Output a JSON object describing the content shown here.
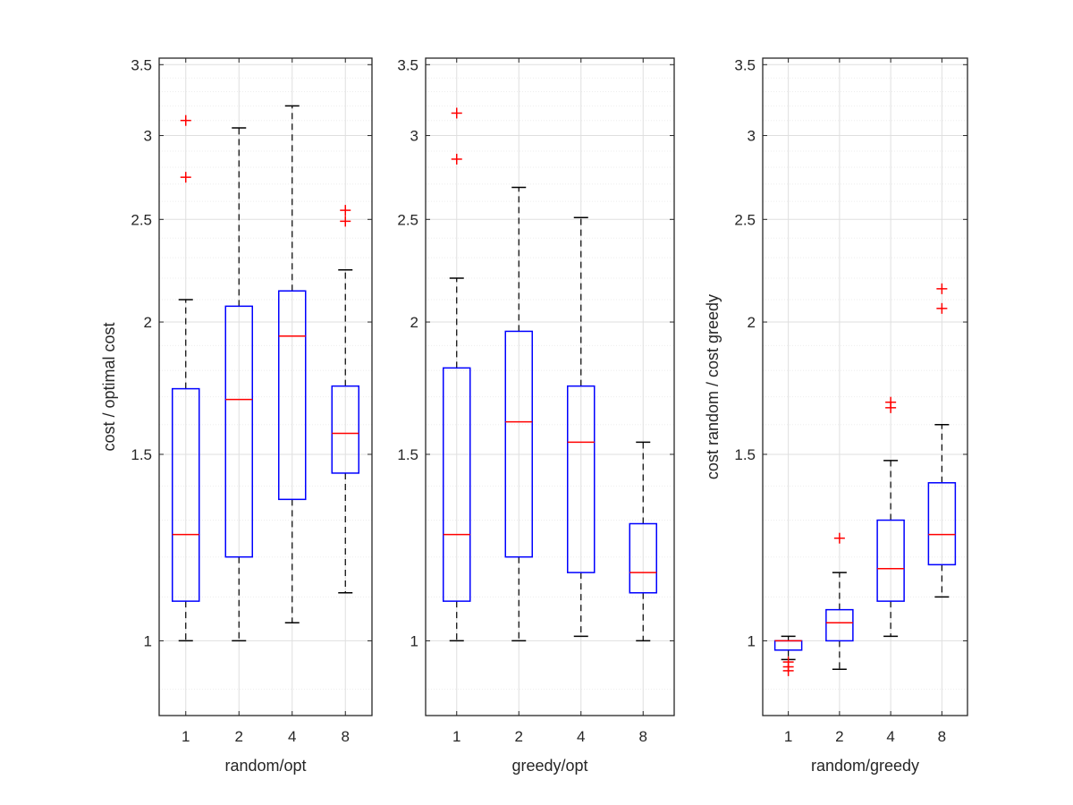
{
  "chart_data": [
    {
      "type": "boxplot",
      "xlabel": "random/opt",
      "ylabel": "cost / optimal cost",
      "ylim": [
        0.85,
        3.55
      ],
      "yscale": "log",
      "yticks": [
        "1",
        "1.5",
        "2",
        "2.5",
        "3",
        "3.5"
      ],
      "grid": true,
      "categories": [
        "1",
        "2",
        "4",
        "8"
      ],
      "boxes": [
        {
          "q1": 1.09,
          "median": 1.26,
          "q3": 1.73,
          "whisker_low": 1.0,
          "whisker_high": 2.1,
          "outliers": [
            3.1,
            2.74
          ]
        },
        {
          "q1": 1.2,
          "median": 1.69,
          "q3": 2.07,
          "whisker_low": 1.0,
          "whisker_high": 3.05,
          "outliers": []
        },
        {
          "q1": 1.36,
          "median": 1.94,
          "q3": 2.14,
          "whisker_low": 1.04,
          "whisker_high": 3.2,
          "outliers": []
        },
        {
          "q1": 1.44,
          "median": 1.57,
          "q3": 1.74,
          "whisker_low": 1.11,
          "whisker_high": 2.24,
          "outliers": [
            2.55,
            2.49
          ]
        }
      ]
    },
    {
      "type": "boxplot",
      "xlabel": "greedy/opt",
      "ylabel": "",
      "ylim": [
        0.85,
        3.55
      ],
      "yscale": "log",
      "yticks": [
        "1",
        "1.5",
        "2",
        "2.5",
        "3",
        "3.5"
      ],
      "grid": true,
      "categories": [
        "1",
        "2",
        "4",
        "8"
      ],
      "boxes": [
        {
          "q1": 1.09,
          "median": 1.26,
          "q3": 1.81,
          "whisker_low": 1.0,
          "whisker_high": 2.2,
          "outliers": [
            3.15,
            2.85
          ]
        },
        {
          "q1": 1.2,
          "median": 1.61,
          "q3": 1.96,
          "whisker_low": 1.0,
          "whisker_high": 2.68,
          "outliers": []
        },
        {
          "q1": 1.16,
          "median": 1.54,
          "q3": 1.74,
          "whisker_low": 1.01,
          "whisker_high": 2.51,
          "outliers": []
        },
        {
          "q1": 1.11,
          "median": 1.16,
          "q3": 1.29,
          "whisker_low": 1.0,
          "whisker_high": 1.54,
          "outliers": []
        }
      ]
    },
    {
      "type": "boxplot",
      "xlabel": "random/greedy",
      "ylabel": "cost random / cost greedy",
      "ylim": [
        0.85,
        3.55
      ],
      "yscale": "log",
      "yticks": [
        "1",
        "1.5",
        "2",
        "2.5",
        "3",
        "3.5"
      ],
      "grid": true,
      "categories": [
        "1",
        "2",
        "4",
        "8"
      ],
      "boxes": [
        {
          "q1": 0.98,
          "median": 1.0,
          "q3": 1.0,
          "whisker_low": 0.96,
          "whisker_high": 1.01,
          "outliers": [
            0.955,
            0.945,
            0.937
          ]
        },
        {
          "q1": 1.0,
          "median": 1.04,
          "q3": 1.07,
          "whisker_low": 0.94,
          "whisker_high": 1.16,
          "outliers": [
            1.25
          ]
        },
        {
          "q1": 1.09,
          "median": 1.17,
          "q3": 1.3,
          "whisker_low": 1.01,
          "whisker_high": 1.48,
          "outliers": [
            1.68,
            1.66
          ]
        },
        {
          "q1": 1.18,
          "median": 1.26,
          "q3": 1.41,
          "whisker_low": 1.1,
          "whisker_high": 1.6,
          "outliers": [
            2.15,
            2.06
          ]
        }
      ]
    }
  ],
  "colors": {
    "box": "#0000ff",
    "median": "#ff0000",
    "outlier": "#ff0000",
    "whisker": "#000000",
    "axis": "#262626",
    "grid_major": "#dfdfdf",
    "grid_minor": "#ededed"
  }
}
